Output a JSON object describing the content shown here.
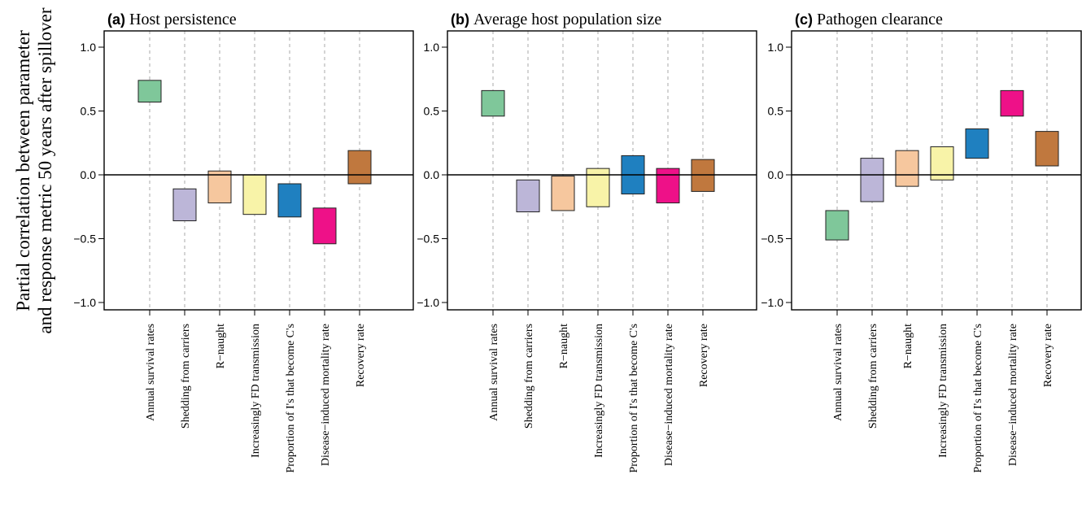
{
  "figure": {
    "ylabel_line1": "Partial correlation between parameter",
    "ylabel_line2": "and response metric 50 years after spillover"
  },
  "chart_data": [
    {
      "type": "floating-bar",
      "panel_letter": "(a)",
      "title": "Host persistence",
      "ylim": [
        -1.1,
        1.1
      ],
      "yticks": [
        -1.0,
        -0.5,
        0.0,
        0.5,
        1.0
      ],
      "ytick_labels": [
        "−1.0",
        "−0.5",
        "0.0",
        "0.5",
        "1.0"
      ],
      "grid": "vertical dashed",
      "categories": [
        "Annual survival rates",
        "Shedding from carriers",
        "R−naught",
        "Increasingly FD transmission",
        "Proportion of I's that become C's",
        "Disease−induced mortality rate",
        "Recovery rate"
      ],
      "low": [
        0.57,
        -0.36,
        -0.22,
        -0.31,
        -0.33,
        -0.54,
        -0.07
      ],
      "high": [
        0.74,
        -0.11,
        0.03,
        0.0,
        -0.07,
        -0.26,
        0.19
      ]
    },
    {
      "type": "floating-bar",
      "panel_letter": "(b)",
      "title": "Average host population size",
      "ylim": [
        -1.1,
        1.1
      ],
      "yticks": [
        -1.0,
        -0.5,
        0.0,
        0.5,
        1.0
      ],
      "ytick_labels": [
        "−1.0",
        "−0.5",
        "0.0",
        "0.5",
        "1.0"
      ],
      "grid": "vertical dashed",
      "categories": [
        "Annual survival rates",
        "Shedding from carriers",
        "R−naught",
        "Increasingly FD transmission",
        "Proportion of I's that become C's",
        "Disease−induced mortality rate",
        "Recovery rate"
      ],
      "low": [
        0.46,
        -0.29,
        -0.28,
        -0.25,
        -0.15,
        -0.22,
        -0.13
      ],
      "high": [
        0.66,
        -0.04,
        -0.01,
        0.05,
        0.15,
        0.05,
        0.12
      ]
    },
    {
      "type": "floating-bar",
      "panel_letter": "(c)",
      "title": "Pathogen clearance",
      "ylim": [
        -1.1,
        1.1
      ],
      "yticks": [
        -1.0,
        -0.5,
        0.0,
        0.5,
        1.0
      ],
      "ytick_labels": [
        "−1.0",
        "−0.5",
        "0.0",
        "0.5",
        "1.0"
      ],
      "grid": "vertical dashed",
      "categories": [
        "Annual survival rates",
        "Shedding from carriers",
        "R−naught",
        "Increasingly FD transmission",
        "Proportion of I's that become C's",
        "Disease−induced mortality rate",
        "Recovery rate"
      ],
      "low": [
        -0.51,
        -0.21,
        -0.09,
        -0.04,
        0.13,
        0.46,
        0.07
      ],
      "high": [
        -0.28,
        0.13,
        0.19,
        0.22,
        0.36,
        0.66,
        0.34
      ]
    }
  ],
  "colors": [
    "#7fc79a",
    "#bcb6d8",
    "#f6c79e",
    "#f8f3a8",
    "#1f80c0",
    "#ee1188",
    "#c0783e"
  ]
}
